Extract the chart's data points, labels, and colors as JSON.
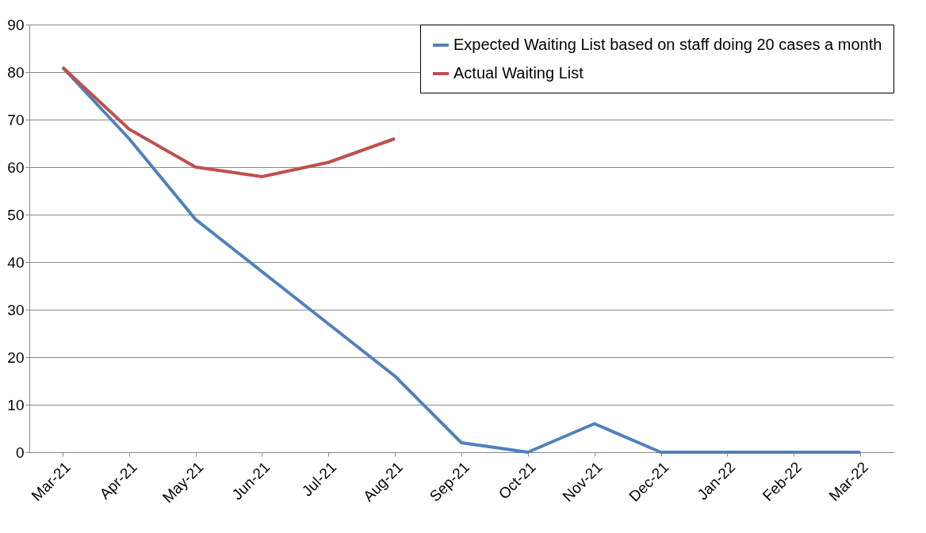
{
  "chart_data": {
    "type": "line",
    "categories": [
      "Mar-21",
      "Apr-21",
      "May-21",
      "Jun-21",
      "Jul-21",
      "Aug-21",
      "Sep-21",
      "Oct-21",
      "Nov-21",
      "Dec-21",
      "Jan-22",
      "Feb-22",
      "Mar-22"
    ],
    "series": [
      {
        "name": "Expected Waiting List based on staff doing 20 cases a month",
        "color": "#4f81bd",
        "values": [
          81,
          66,
          49,
          38,
          27,
          16,
          2,
          0,
          6,
          0,
          0,
          0,
          0
        ]
      },
      {
        "name": "Actual Waiting List",
        "color": "#c0504d",
        "values": [
          81,
          68,
          60,
          58,
          61,
          66,
          null,
          null,
          null,
          null,
          null,
          null,
          null
        ]
      }
    ],
    "ylim": [
      0,
      90
    ],
    "yticks": [
      0,
      10,
      20,
      30,
      40,
      50,
      60,
      70,
      80,
      90
    ],
    "grid": "y",
    "legend": "top right",
    "line_style": "solid",
    "marker": "none"
  }
}
